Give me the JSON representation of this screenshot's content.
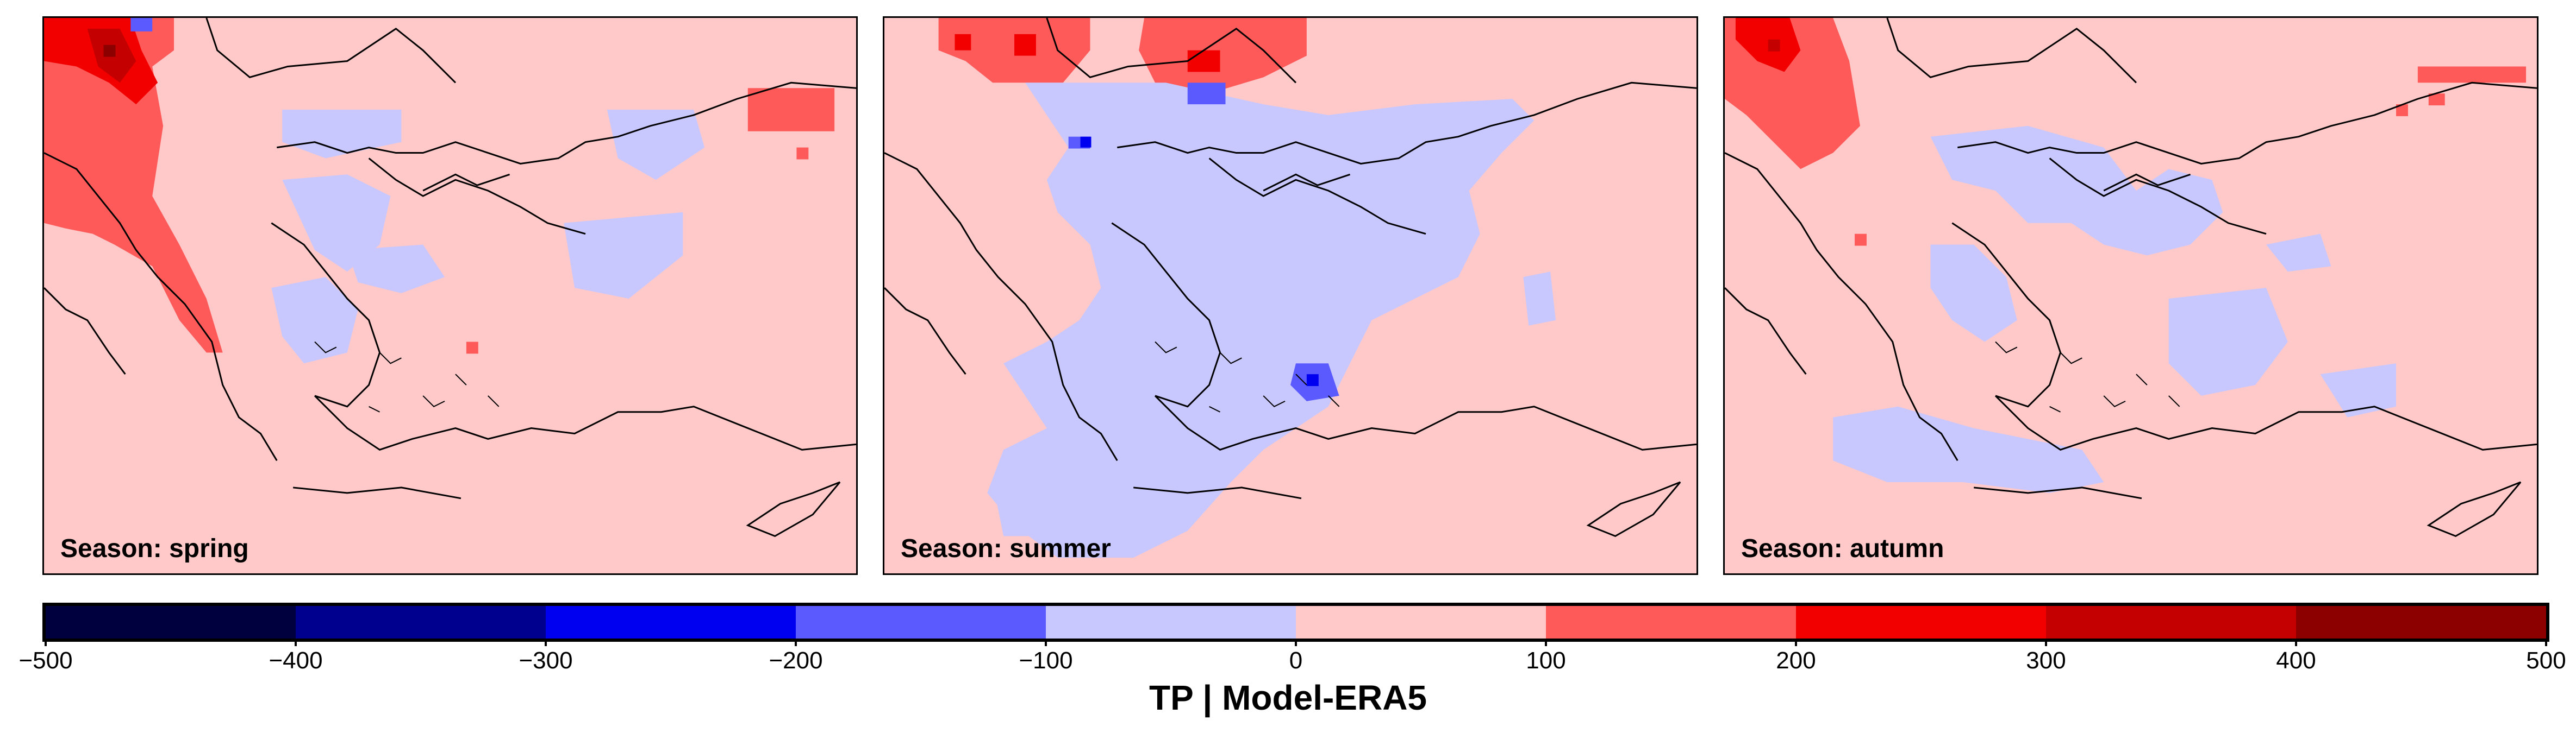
{
  "panels": [
    {
      "label": "Season: spring"
    },
    {
      "label": "Season: summer"
    },
    {
      "label": "Season: autumn"
    }
  ],
  "colorbar": {
    "title": "TP | Model-ERA5",
    "ticks": [
      "−500",
      "−400",
      "−300",
      "−200",
      "−100",
      "0",
      "100",
      "200",
      "300",
      "400",
      "500"
    ],
    "bins": [
      {
        "from": -500,
        "to": -400,
        "color": "#00003f"
      },
      {
        "from": -400,
        "to": -300,
        "color": "#00008f"
      },
      {
        "from": -300,
        "to": -200,
        "color": "#0000f0"
      },
      {
        "from": -200,
        "to": -100,
        "color": "#5a5aff"
      },
      {
        "from": -100,
        "to": 0,
        "color": "#c8c8ff"
      },
      {
        "from": 0,
        "to": 100,
        "color": "#ffc9c9"
      },
      {
        "from": 100,
        "to": 200,
        "color": "#ff5a5a"
      },
      {
        "from": 200,
        "to": 300,
        "color": "#f20000"
      },
      {
        "from": 300,
        "to": 400,
        "color": "#c40000"
      },
      {
        "from": 400,
        "to": 500,
        "color": "#8c0000"
      }
    ]
  }
}
